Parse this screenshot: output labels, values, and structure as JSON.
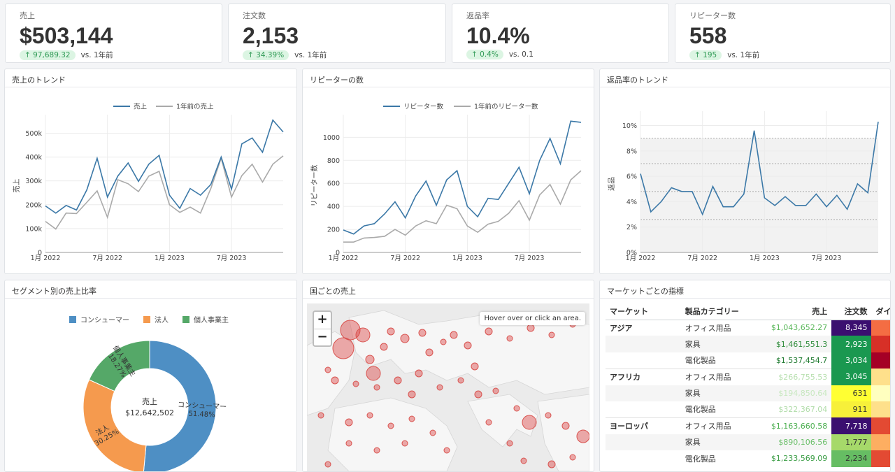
{
  "kpis": [
    {
      "title": "売上",
      "value": "$503,144",
      "delta": "↑ 97,689.32",
      "compare": "vs. 1年前"
    },
    {
      "title": "注文数",
      "value": "2,153",
      "delta": "↑ 34.39%",
      "compare": "vs. 1年前"
    },
    {
      "title": "返品率",
      "value": "10.4%",
      "delta": "↑ 0.4%",
      "compare": "vs. 0.1"
    },
    {
      "title": "リピーター数",
      "value": "558",
      "delta": "↑ 195",
      "compare": "vs. 1年前"
    }
  ],
  "panels": {
    "sales_trend": "売上のトレンド",
    "repeaters": "リピーターの数",
    "return_trend": "返品率のトレンド",
    "segment": "セグメント別の売上比率",
    "country": "国ごとの売上",
    "market": "マーケットごとの指標"
  },
  "map": {
    "zoom_in": "+",
    "zoom_out": "−",
    "hint": "Hover over or click an area."
  },
  "market_table": {
    "headers": [
      "マーケット",
      "製品カテゴリー",
      "売上",
      "注文数",
      "ダイレ"
    ],
    "rows": [
      {
        "market": "アジア",
        "category": "オフィス用品",
        "sales": "$1,043,652.27",
        "orders": "8,345",
        "sales_color": "#5cb85c",
        "orders_bg": "#3b0f70",
        "orders_fg": "#ffffff",
        "extra_bg": "#f46d43"
      },
      {
        "market": "",
        "category": "家具",
        "sales": "$1,461,551.3",
        "orders": "2,923",
        "sales_color": "#2e8b3a",
        "orders_bg": "#1a9850",
        "orders_fg": "#ffffff",
        "extra_bg": "#d73027"
      },
      {
        "market": "",
        "category": "電化製品",
        "sales": "$1,537,454.7",
        "orders": "3,034",
        "sales_color": "#1f7a30",
        "orders_bg": "#1a9850",
        "orders_fg": "#ffffff",
        "extra_bg": "#a50026"
      },
      {
        "market": "アフリカ",
        "category": "オフィス用品",
        "sales": "$266,755.53",
        "orders": "3,045",
        "sales_color": "#b8e0b0",
        "orders_bg": "#1a9850",
        "orders_fg": "#ffffff",
        "extra_bg": "#fee08b"
      },
      {
        "market": "",
        "category": "家具",
        "sales": "$194,850.64",
        "orders": "631",
        "sales_color": "#c8e8c0",
        "orders_bg": "#ffff33",
        "orders_fg": "#333333",
        "extra_bg": "#ffffbf"
      },
      {
        "market": "",
        "category": "電化製品",
        "sales": "$322,367.04",
        "orders": "911",
        "sales_color": "#b0dca8",
        "orders_bg": "#f7f03a",
        "orders_fg": "#333333",
        "extra_bg": "#fee08b"
      },
      {
        "market": "ヨーロッパ",
        "category": "オフィス用品",
        "sales": "$1,163,660.58",
        "orders": "7,718",
        "sales_color": "#4caf50",
        "orders_bg": "#3b0f70",
        "orders_fg": "#ffffff",
        "extra_bg": "#e34a33"
      },
      {
        "market": "",
        "category": "家具",
        "sales": "$890,106.56",
        "orders": "1,777",
        "sales_color": "#6abf69",
        "orders_bg": "#a6d96a",
        "orders_fg": "#333333",
        "extra_bg": "#fdae61"
      },
      {
        "market": "",
        "category": "電化製品",
        "sales": "$1,233,569.09",
        "orders": "2,234",
        "sales_color": "#3a9d44",
        "orders_bg": "#66bd63",
        "orders_fg": "#333333",
        "extra_bg": "#e34a33"
      }
    ]
  },
  "chart_data": [
    {
      "type": "line",
      "x_ticks": [
        "1月 2022",
        "7月 2022",
        "1月 2023",
        "7月 2023"
      ],
      "y_ticks": [
        "0",
        "100k",
        "200k",
        "300k",
        "400k",
        "500k"
      ],
      "ylabel": "売上",
      "ylim": [
        0,
        560000
      ],
      "series": [
        {
          "name": "売上",
          "color": "#3b78a7",
          "values": [
            195000,
            165000,
            197000,
            178000,
            262000,
            395000,
            232000,
            320000,
            375000,
            298000,
            370000,
            407000,
            240000,
            185000,
            268000,
            240000,
            285000,
            400000,
            265000,
            455000,
            480000,
            420000,
            555000,
            505000
          ]
        },
        {
          "name": "1年前の売上",
          "color": "#aaaaaa",
          "values": [
            130000,
            98000,
            165000,
            163000,
            210000,
            258000,
            147000,
            305000,
            288000,
            255000,
            320000,
            340000,
            200000,
            168000,
            190000,
            165000,
            268000,
            395000,
            232000,
            322000,
            370000,
            295000,
            370000,
            405000
          ]
        }
      ]
    },
    {
      "type": "line",
      "x_ticks": [
        "1月 2022",
        "7月 2022",
        "1月 2023",
        "7月 2023"
      ],
      "y_ticks": [
        "0",
        "200",
        "400",
        "600",
        "800",
        "1000"
      ],
      "ylabel": "リピーター数",
      "ylim": [
        0,
        1160
      ],
      "series": [
        {
          "name": "リピーター数",
          "color": "#3b78a7",
          "values": [
            195,
            160,
            230,
            250,
            335,
            440,
            300,
            490,
            620,
            410,
            630,
            710,
            400,
            310,
            470,
            460,
            600,
            740,
            510,
            800,
            990,
            770,
            1140,
            1130
          ]
        },
        {
          "name": "1年前のリピーター数",
          "color": "#aaaaaa",
          "values": [
            90,
            90,
            125,
            130,
            140,
            200,
            150,
            230,
            275,
            250,
            410,
            380,
            230,
            175,
            245,
            270,
            340,
            450,
            280,
            500,
            590,
            420,
            630,
            710
          ]
        }
      ]
    },
    {
      "type": "line",
      "x_ticks": [
        "1月 2022",
        "7月 2022",
        "1月 2023",
        "7月 2023"
      ],
      "y_ticks": [
        "0%",
        "2%",
        "4%",
        "6%",
        "8%",
        "10%"
      ],
      "ylabel": "返品",
      "ylim": [
        0,
        10.8
      ],
      "series": [
        {
          "name": "返品率",
          "color": "#3b78a7",
          "values": [
            6.2,
            3.2,
            4,
            5.1,
            4.8,
            4.8,
            3,
            5.2,
            3.6,
            3.6,
            4.6,
            9.6,
            4.3,
            3.7,
            4.4,
            3.7,
            3.7,
            4.6,
            3.6,
            4.5,
            3.4,
            5.4,
            4.7,
            10.3
          ]
        }
      ]
    },
    {
      "type": "pie",
      "legend": [
        "コンシューマー",
        "法人",
        "個人事業主"
      ],
      "slices": [
        {
          "label": "コンシューマー",
          "percent": "51.48%",
          "value": 51.48,
          "color": "#4e8fc4"
        },
        {
          "label": "法人",
          "percent": "30.25%",
          "value": 30.25,
          "color": "#f59a4e"
        },
        {
          "label": "個人事業主",
          "percent": "18.27%",
          "value": 18.27,
          "color": "#55a868"
        }
      ],
      "center_title": "売上",
      "center_value": "$12,642,502"
    }
  ]
}
